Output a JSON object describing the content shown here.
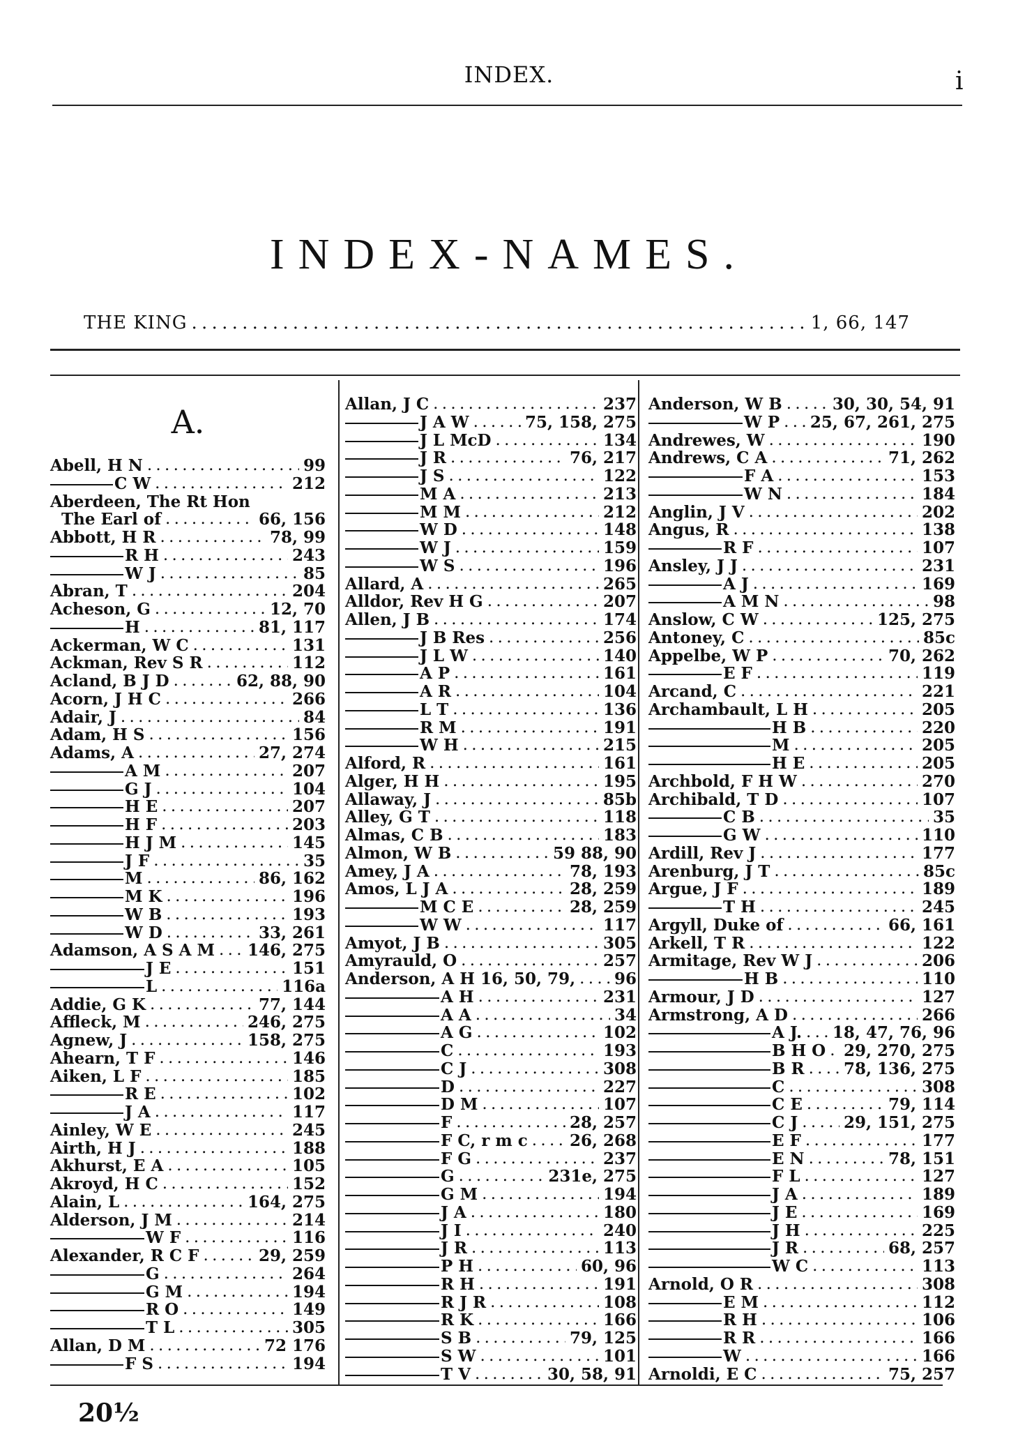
{
  "header": {
    "running_title": "INDEX.",
    "folio": "i"
  },
  "title": "INDEX-NAMES.",
  "king": {
    "name": "THE KING",
    "pages": "1, 66, 147"
  },
  "columns": [
    {
      "heading": "A.",
      "entries": [
        {
          "name": "Abell, H N",
          "pages": "99",
          "sub": 0
        },
        {
          "name": "C W",
          "pages": "212",
          "sub": 1
        },
        {
          "name": "Aberdeen, The Rt Hon",
          "pages": "",
          "sub": 0
        },
        {
          "name": "  The Earl of",
          "pages": "66, 156",
          "sub": 0
        },
        {
          "name": "Abbott, H R",
          "pages": "78, 99",
          "sub": 0
        },
        {
          "name": "R H",
          "pages": "243",
          "sub": 2
        },
        {
          "name": "W J",
          "pages": "85",
          "sub": 2
        },
        {
          "name": "Abran, T",
          "pages": "204",
          "sub": 0
        },
        {
          "name": "Acheson, G",
          "pages": "12, 70",
          "sub": 0
        },
        {
          "name": "H",
          "pages": "81, 117",
          "sub": 2
        },
        {
          "name": "Ackerman, W C",
          "pages": "131",
          "sub": 0
        },
        {
          "name": "Ackman, Rev S R",
          "pages": "112",
          "sub": 0
        },
        {
          "name": "Acland, B J D",
          "pages": "62, 88, 90",
          "sub": 0
        },
        {
          "name": "Acorn, J H C",
          "pages": "266",
          "sub": 0
        },
        {
          "name": "Adair, J",
          "pages": "84",
          "sub": 0
        },
        {
          "name": "Adam, H S",
          "pages": "156",
          "sub": 0
        },
        {
          "name": "Adams, A",
          "pages": "27, 274",
          "sub": 0
        },
        {
          "name": "A M",
          "pages": "207",
          "sub": 2
        },
        {
          "name": "G J",
          "pages": "104",
          "sub": 2
        },
        {
          "name": "H E",
          "pages": "207",
          "sub": 2
        },
        {
          "name": "H F",
          "pages": "203",
          "sub": 2
        },
        {
          "name": "H J M",
          "pages": "145",
          "sub": 2
        },
        {
          "name": "J F",
          "pages": "35",
          "sub": 2
        },
        {
          "name": "M",
          "pages": "86, 162",
          "sub": 2
        },
        {
          "name": "M K",
          "pages": "196",
          "sub": 2
        },
        {
          "name": "W B",
          "pages": "193",
          "sub": 2
        },
        {
          "name": "W D",
          "pages": "33, 261",
          "sub": 2
        },
        {
          "name": "Adamson, A S A M",
          "pages": "146, 275",
          "sub": 0
        },
        {
          "name": "J E",
          "pages": "151",
          "sub": 3
        },
        {
          "name": "L",
          "pages": "116a",
          "sub": 3
        },
        {
          "name": "Addie, G K",
          "pages": "77, 144",
          "sub": 0
        },
        {
          "name": "Affleck, M",
          "pages": "246, 275",
          "sub": 0
        },
        {
          "name": "Agnew, J",
          "pages": "158, 275",
          "sub": 0
        },
        {
          "name": "Ahearn, T F",
          "pages": "146",
          "sub": 0
        },
        {
          "name": "Aiken, L F",
          "pages": "185",
          "sub": 0
        },
        {
          "name": "R E",
          "pages": "102",
          "sub": 2
        },
        {
          "name": "J A",
          "pages": "117",
          "sub": 2
        },
        {
          "name": "Ainley, W E",
          "pages": "245",
          "sub": 0
        },
        {
          "name": "Airth, H J",
          "pages": "188",
          "sub": 0
        },
        {
          "name": "Akhurst, E A",
          "pages": "105",
          "sub": 0
        },
        {
          "name": "Akroyd, H C",
          "pages": "152",
          "sub": 0
        },
        {
          "name": "Alain, L",
          "pages": "164, 275",
          "sub": 0
        },
        {
          "name": "Alderson, J M",
          "pages": "214",
          "sub": 0
        },
        {
          "name": "W F",
          "pages": "116",
          "sub": 3
        },
        {
          "name": "Alexander, R C F",
          "pages": "29, 259",
          "sub": 0
        },
        {
          "name": "G",
          "pages": "264",
          "sub": 3
        },
        {
          "name": "G M",
          "pages": "194",
          "sub": 3
        },
        {
          "name": "R O",
          "pages": "149",
          "sub": 3
        },
        {
          "name": "T L",
          "pages": "305",
          "sub": 3
        },
        {
          "name": "Allan, D M",
          "pages": "72 176",
          "sub": 0
        },
        {
          "name": "F S",
          "pages": "194",
          "sub": 2
        }
      ]
    },
    {
      "heading": "",
      "entries": [
        {
          "name": "Allan, J C",
          "pages": "237",
          "sub": 0
        },
        {
          "name": "J A W",
          "pages": "75, 158, 275",
          "sub": 2
        },
        {
          "name": "J L McD",
          "pages": "134",
          "sub": 2
        },
        {
          "name": "J R",
          "pages": "76, 217",
          "sub": 2
        },
        {
          "name": "J S",
          "pages": "122",
          "sub": 2
        },
        {
          "name": "M A",
          "pages": "213",
          "sub": 2
        },
        {
          "name": "M M",
          "pages": "212",
          "sub": 2
        },
        {
          "name": "W D",
          "pages": "148",
          "sub": 2
        },
        {
          "name": "W J",
          "pages": "159",
          "sub": 2
        },
        {
          "name": "W S",
          "pages": "196",
          "sub": 2
        },
        {
          "name": "Allard, A",
          "pages": "265",
          "sub": 0
        },
        {
          "name": "Alldor, Rev H G",
          "pages": "207",
          "sub": 0
        },
        {
          "name": "Allen, J B",
          "pages": "174",
          "sub": 0
        },
        {
          "name": "J B Res",
          "pages": "256",
          "sub": 2
        },
        {
          "name": "J L W",
          "pages": "140",
          "sub": 2
        },
        {
          "name": "A P",
          "pages": "161",
          "sub": 2
        },
        {
          "name": "A R",
          "pages": "104",
          "sub": 2
        },
        {
          "name": "L T",
          "pages": "136",
          "sub": 2
        },
        {
          "name": "R M",
          "pages": "191",
          "sub": 2
        },
        {
          "name": "W H",
          "pages": "215",
          "sub": 2
        },
        {
          "name": "Alford, R",
          "pages": "161",
          "sub": 0
        },
        {
          "name": "Alger, H H",
          "pages": "195",
          "sub": 0
        },
        {
          "name": "Allaway, J",
          "pages": "85b",
          "sub": 0
        },
        {
          "name": "Alley, G T",
          "pages": "118",
          "sub": 0
        },
        {
          "name": "Almas, C B",
          "pages": "183",
          "sub": 0
        },
        {
          "name": "Almon, W B",
          "pages": "59 88, 90",
          "sub": 0
        },
        {
          "name": "Amey, J A",
          "pages": "78, 193",
          "sub": 0
        },
        {
          "name": "Amos, L J A",
          "pages": "28, 259",
          "sub": 0
        },
        {
          "name": "M C E",
          "pages": "28, 259",
          "sub": 2
        },
        {
          "name": "W W",
          "pages": "117",
          "sub": 2
        },
        {
          "name": "Amyot, J B",
          "pages": "305",
          "sub": 0
        },
        {
          "name": "Amyrauld, O",
          "pages": "257",
          "sub": 0
        },
        {
          "name": "Anderson, A H 16, 50, 79,",
          "pages": "96",
          "sub": 0
        },
        {
          "name": "A H",
          "pages": "231",
          "sub": 3
        },
        {
          "name": "A A",
          "pages": "34",
          "sub": 3
        },
        {
          "name": "A G",
          "pages": "102",
          "sub": 3
        },
        {
          "name": "C",
          "pages": "193",
          "sub": 3
        },
        {
          "name": "C J",
          "pages": "308",
          "sub": 3
        },
        {
          "name": "D",
          "pages": "227",
          "sub": 3
        },
        {
          "name": "D M",
          "pages": "107",
          "sub": 3
        },
        {
          "name": "F",
          "pages": "28, 257",
          "sub": 3
        },
        {
          "name": "F C, r m c",
          "pages": "26, 268",
          "sub": 3
        },
        {
          "name": "F G",
          "pages": "237",
          "sub": 3
        },
        {
          "name": "G",
          "pages": "231e, 275",
          "sub": 3
        },
        {
          "name": "G M",
          "pages": "194",
          "sub": 3
        },
        {
          "name": "J A",
          "pages": "180",
          "sub": 3
        },
        {
          "name": "J I",
          "pages": "240",
          "sub": 3
        },
        {
          "name": "J R",
          "pages": "113",
          "sub": 3
        },
        {
          "name": "P H",
          "pages": "60, 96",
          "sub": 3
        },
        {
          "name": "R H",
          "pages": "191",
          "sub": 3
        },
        {
          "name": "R J R",
          "pages": "108",
          "sub": 3
        },
        {
          "name": "R K",
          "pages": "166",
          "sub": 3
        },
        {
          "name": "S B",
          "pages": "79, 125",
          "sub": 3
        },
        {
          "name": "S W",
          "pages": "101",
          "sub": 3
        },
        {
          "name": "T V",
          "pages": "30, 58, 91",
          "sub": 3
        }
      ]
    },
    {
      "heading": "",
      "entries": [
        {
          "name": "Anderson, W B",
          "pages": "30, 30, 54, 91",
          "sub": 0
        },
        {
          "name": "W P",
          "pages": "25, 67, 261, 275",
          "sub": 3
        },
        {
          "name": "Andrewes, W",
          "pages": "190",
          "sub": 0
        },
        {
          "name": "Andrews, C A",
          "pages": "71, 262",
          "sub": 0
        },
        {
          "name": "F A",
          "pages": "153",
          "sub": 3
        },
        {
          "name": "W N",
          "pages": "184",
          "sub": 3
        },
        {
          "name": "Anglin, J V",
          "pages": "202",
          "sub": 0
        },
        {
          "name": "Angus, R",
          "pages": "138",
          "sub": 0
        },
        {
          "name": "R F",
          "pages": "107",
          "sub": 2
        },
        {
          "name": "Ansley, J J",
          "pages": "231",
          "sub": 0
        },
        {
          "name": "A J",
          "pages": "169",
          "sub": 2
        },
        {
          "name": "A M N",
          "pages": "98",
          "sub": 2
        },
        {
          "name": "Anslow, C W",
          "pages": "125, 275",
          "sub": 0
        },
        {
          "name": "Antoney, C",
          "pages": "85c",
          "sub": 0
        },
        {
          "name": "Appelbe, W P",
          "pages": "70, 262",
          "sub": 0
        },
        {
          "name": "E F",
          "pages": "119",
          "sub": 2
        },
        {
          "name": "Arcand, C",
          "pages": "221",
          "sub": 0
        },
        {
          "name": "Archambault, L H",
          "pages": "205",
          "sub": 0
        },
        {
          "name": "H B",
          "pages": "220",
          "sub": 4
        },
        {
          "name": "M",
          "pages": "205",
          "sub": 4
        },
        {
          "name": "H E",
          "pages": "205",
          "sub": 4
        },
        {
          "name": "Archbold, F H W",
          "pages": "270",
          "sub": 0
        },
        {
          "name": "Archibald, T D",
          "pages": "107",
          "sub": 0
        },
        {
          "name": "C B",
          "pages": "35",
          "sub": 2
        },
        {
          "name": "G W",
          "pages": "110",
          "sub": 2
        },
        {
          "name": "Ardill, Rev J",
          "pages": "177",
          "sub": 0
        },
        {
          "name": "Arenburg, J T",
          "pages": "85c",
          "sub": 0
        },
        {
          "name": "Argue, J F",
          "pages": "189",
          "sub": 0
        },
        {
          "name": "T H",
          "pages": "245",
          "sub": 2
        },
        {
          "name": "Argyll, Duke of",
          "pages": "66, 161",
          "sub": 0
        },
        {
          "name": "Arkell, T R",
          "pages": "122",
          "sub": 0
        },
        {
          "name": "Armitage, Rev W J",
          "pages": "206",
          "sub": 0
        },
        {
          "name": "H B",
          "pages": "110",
          "sub": 3
        },
        {
          "name": "Armour, J D",
          "pages": "127",
          "sub": 0
        },
        {
          "name": "Armstrong, A D",
          "pages": "266",
          "sub": 0
        },
        {
          "name": "A J.",
          "pages": "18, 47, 76, 96",
          "sub": 4
        },
        {
          "name": "B H O",
          "pages": "29, 270, 275",
          "sub": 4
        },
        {
          "name": "B R",
          "pages": "78, 136, 275",
          "sub": 4
        },
        {
          "name": "C",
          "pages": "308",
          "sub": 4
        },
        {
          "name": "C E",
          "pages": "79, 114",
          "sub": 4
        },
        {
          "name": "C J",
          "pages": "29, 151, 275",
          "sub": 4
        },
        {
          "name": "E F",
          "pages": "177",
          "sub": 4
        },
        {
          "name": "E N",
          "pages": "78, 151",
          "sub": 4
        },
        {
          "name": "F L",
          "pages": "127",
          "sub": 4
        },
        {
          "name": "J A",
          "pages": "189",
          "sub": 4
        },
        {
          "name": "J E",
          "pages": "169",
          "sub": 4
        },
        {
          "name": "J H",
          "pages": "225",
          "sub": 4
        },
        {
          "name": "J R",
          "pages": "68, 257",
          "sub": 4
        },
        {
          "name": "W C",
          "pages": "113",
          "sub": 4
        },
        {
          "name": "Arnold, O R",
          "pages": "308",
          "sub": 0
        },
        {
          "name": "E M",
          "pages": "112",
          "sub": 2
        },
        {
          "name": "R H",
          "pages": "106",
          "sub": 2
        },
        {
          "name": "R R",
          "pages": "166",
          "sub": 2
        },
        {
          "name": "W",
          "pages": "166",
          "sub": 2
        },
        {
          "name": "Arnoldi, E C",
          "pages": "75, 257",
          "sub": 0
        }
      ]
    }
  ],
  "footer": {
    "signature_mark": "20½"
  }
}
